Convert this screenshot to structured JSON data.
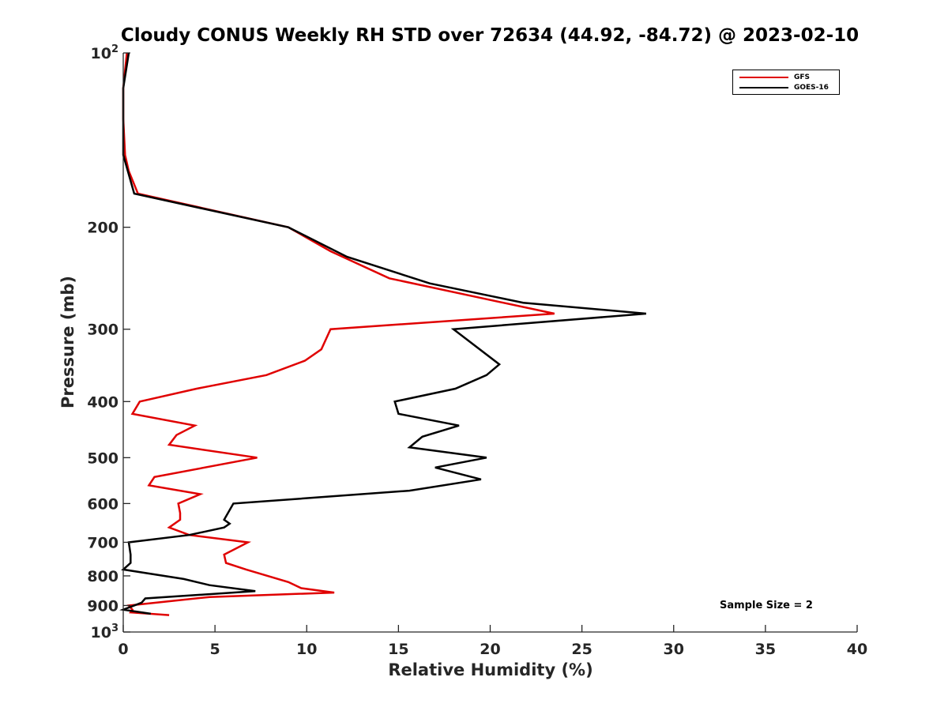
{
  "chart_data": {
    "type": "line",
    "title": "Cloudy CONUS Weekly RH STD over 72634 (44.92, -84.72) @ 2023-02-10",
    "xlabel": "Relative Humidity (%)",
    "ylabel": "Pressure (mb)",
    "xlim": [
      0,
      40
    ],
    "ylim": [
      100,
      1000
    ],
    "yscale": "log",
    "y_reversed": true,
    "xticks": [
      "0",
      "5",
      "10",
      "15",
      "20",
      "25",
      "30",
      "35",
      "40"
    ],
    "yticks": [
      {
        "value": 100,
        "label": "10",
        "sup": "2"
      },
      {
        "value": 200,
        "label": "200",
        "sup": ""
      },
      {
        "value": 300,
        "label": "300",
        "sup": ""
      },
      {
        "value": 400,
        "label": "400",
        "sup": ""
      },
      {
        "value": 500,
        "label": "500",
        "sup": ""
      },
      {
        "value": 600,
        "label": "600",
        "sup": ""
      },
      {
        "value": 700,
        "label": "700",
        "sup": ""
      },
      {
        "value": 800,
        "label": "800",
        "sup": ""
      },
      {
        "value": 900,
        "label": "900",
        "sup": ""
      },
      {
        "value": 1000,
        "label": "10",
        "sup": "3"
      }
    ],
    "grid": false,
    "legend_position": "top-right",
    "series": [
      {
        "name": "GFS",
        "color": "#e00000",
        "points": [
          [
            0.2,
            100
          ],
          [
            0.0,
            115
          ],
          [
            0.0,
            130
          ],
          [
            0.1,
            150
          ],
          [
            0.3,
            160
          ],
          [
            0.8,
            175
          ],
          [
            9.0,
            200
          ],
          [
            11.3,
            220
          ],
          [
            14.5,
            245
          ],
          [
            19.5,
            265
          ],
          [
            23.5,
            282
          ],
          [
            11.3,
            300
          ],
          [
            10.8,
            325
          ],
          [
            9.9,
            340
          ],
          [
            7.8,
            360
          ],
          [
            4.0,
            380
          ],
          [
            0.9,
            400
          ],
          [
            0.5,
            420
          ],
          [
            3.9,
            440
          ],
          [
            2.9,
            457
          ],
          [
            2.5,
            475
          ],
          [
            7.3,
            500
          ],
          [
            1.7,
            540
          ],
          [
            1.4,
            558
          ],
          [
            4.2,
            578
          ],
          [
            3.0,
            600
          ],
          [
            3.1,
            623
          ],
          [
            3.1,
            640
          ],
          [
            2.5,
            660
          ],
          [
            3.6,
            680
          ],
          [
            6.8,
            700
          ],
          [
            5.5,
            735
          ],
          [
            5.6,
            760
          ],
          [
            6.7,
            780
          ],
          [
            9.0,
            820
          ],
          [
            9.7,
            840
          ],
          [
            11.5,
            855
          ],
          [
            4.7,
            870
          ],
          [
            0.3,
            900
          ],
          [
            0.5,
            915
          ],
          [
            0.4,
            925
          ],
          [
            2.5,
            935
          ]
        ]
      },
      {
        "name": "GOES-16",
        "color": "#000000",
        "points": [
          [
            0.3,
            100
          ],
          [
            0.0,
            115
          ],
          [
            0.0,
            150
          ],
          [
            0.6,
            175
          ],
          [
            9.0,
            200
          ],
          [
            12.2,
            225
          ],
          [
            16.7,
            250
          ],
          [
            21.8,
            270
          ],
          [
            28.5,
            282
          ],
          [
            18.0,
            300
          ],
          [
            20.5,
            345
          ],
          [
            19.8,
            360
          ],
          [
            18.1,
            380
          ],
          [
            14.8,
            400
          ],
          [
            15.0,
            420
          ],
          [
            18.3,
            440
          ],
          [
            16.3,
            460
          ],
          [
            15.6,
            480
          ],
          [
            19.8,
            500
          ],
          [
            17.0,
            520
          ],
          [
            19.5,
            545
          ],
          [
            15.6,
            570
          ],
          [
            6.0,
            600
          ],
          [
            5.5,
            640
          ],
          [
            5.8,
            650
          ],
          [
            5.5,
            660
          ],
          [
            3.6,
            680
          ],
          [
            0.3,
            700
          ],
          [
            0.4,
            735
          ],
          [
            0.4,
            760
          ],
          [
            0.0,
            780
          ],
          [
            3.3,
            810
          ],
          [
            4.7,
            830
          ],
          [
            7.2,
            850
          ],
          [
            1.2,
            875
          ],
          [
            1.0,
            890
          ],
          [
            0.0,
            915
          ],
          [
            1.5,
            930
          ]
        ]
      }
    ],
    "annotations": [
      "Sample Size = 2"
    ]
  }
}
